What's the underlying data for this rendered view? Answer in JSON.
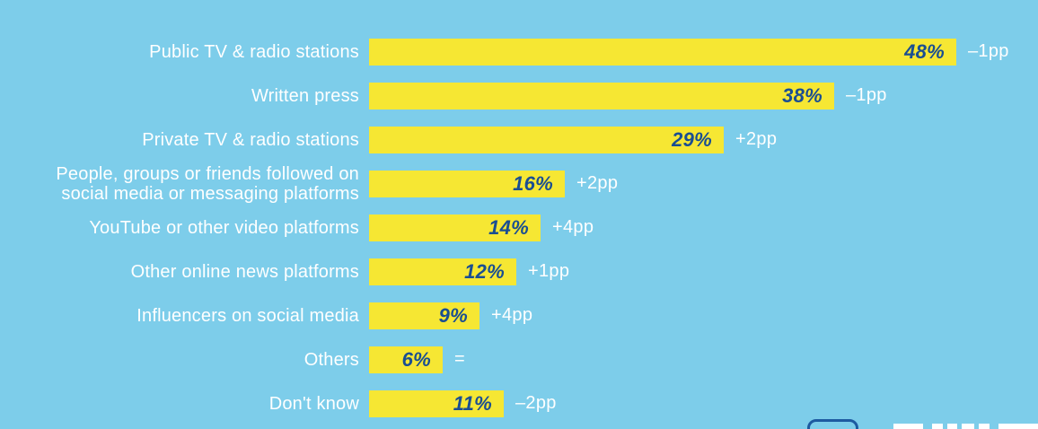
{
  "window": {
    "background_color": "#7dcdea"
  },
  "chart_data": {
    "type": "bar",
    "orientation": "horizontal",
    "title": "",
    "categories": [
      "Public TV & radio stations",
      "Written press",
      "Private TV & radio stations",
      "People, groups or friends followed on\nsocial media or messaging platforms",
      "YouTube or other video platforms",
      "Other online news platforms",
      "Influencers on social media",
      "Others",
      "Don't know"
    ],
    "values": [
      48,
      38,
      29,
      16,
      14,
      12,
      9,
      6,
      11
    ],
    "value_labels": [
      "48%",
      "38%",
      "29%",
      "16%",
      "14%",
      "12%",
      "9%",
      "6%",
      "11%"
    ],
    "annotations": [
      "–1pp",
      "–1pp",
      "+2pp",
      "+2pp",
      "+4pp",
      "+1pp",
      "+4pp",
      "=",
      "–2pp"
    ],
    "value_suffix": "%",
    "xlim": [
      0,
      48
    ],
    "grid": false,
    "legend": "none",
    "bar_color": "#f6e733",
    "value_label_color": "#1a4e92",
    "category_label_color": "#ffffff",
    "annotation_color": "#ffffff",
    "background_color": "#7dcdea"
  },
  "decor": {
    "logo_outline_color": "#1d5aa0",
    "logo_blocks_color": "#ffffff"
  }
}
